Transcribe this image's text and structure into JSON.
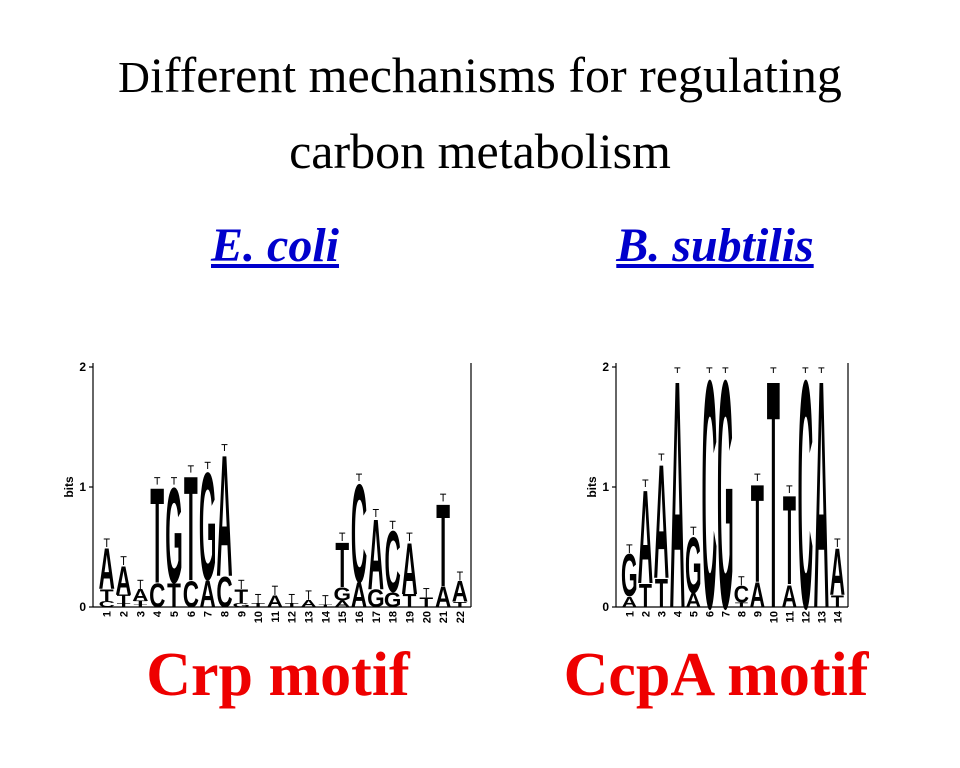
{
  "title": {
    "line1_initial": "D",
    "line1_rest": "ifferent mechanisms for regulating",
    "line2": "carbon metabolism"
  },
  "left": {
    "organism": "E. coli",
    "motif_label": "Crp motif"
  },
  "right": {
    "organism": "B. subtilis",
    "motif_label": "CcpA motif"
  },
  "colors": {
    "title": "#000000",
    "organism_link": "#0000cc",
    "motif_label": "#ee0000",
    "logo_letters": "#000000"
  },
  "chart_data": [
    {
      "type": "sequence-logo",
      "ylabel": "bits",
      "ylim": [
        0,
        2
      ],
      "yticks": [
        "0",
        "1",
        "2"
      ],
      "positions": [
        {
          "label": "1",
          "height": 0.5,
          "letters": [
            "A",
            "T",
            "C"
          ]
        },
        {
          "label": "2",
          "height": 0.35,
          "letters": [
            "A",
            "T",
            "T"
          ]
        },
        {
          "label": "3",
          "height": 0.15,
          "letters": [
            "A",
            "T",
            "T"
          ]
        },
        {
          "label": "4",
          "height": 1.02,
          "letters": [
            "T",
            "C"
          ]
        },
        {
          "label": "5",
          "height": 1.02,
          "letters": [
            "G",
            "T"
          ]
        },
        {
          "label": "6",
          "height": 1.12,
          "letters": [
            "T",
            "C"
          ]
        },
        {
          "label": "7",
          "height": 1.15,
          "letters": [
            "G",
            "A"
          ]
        },
        {
          "label": "8",
          "height": 1.3,
          "letters": [
            "A",
            "C"
          ]
        },
        {
          "label": "9",
          "height": 0.15,
          "letters": [
            "T",
            "G"
          ]
        },
        {
          "label": "10",
          "height": 0.03,
          "letters": [
            "T"
          ]
        },
        {
          "label": "11",
          "height": 0.1,
          "letters": [
            "A"
          ]
        },
        {
          "label": "12",
          "height": 0.03,
          "letters": [
            "T"
          ]
        },
        {
          "label": "13",
          "height": 0.06,
          "letters": [
            "A"
          ]
        },
        {
          "label": "14",
          "height": 0.02,
          "letters": [
            "T"
          ]
        },
        {
          "label": "15",
          "height": 0.55,
          "letters": [
            "T",
            "G",
            "A"
          ]
        },
        {
          "label": "16",
          "height": 1.05,
          "letters": [
            "C",
            "A"
          ]
        },
        {
          "label": "17",
          "height": 0.75,
          "letters": [
            "A",
            "G"
          ]
        },
        {
          "label": "18",
          "height": 0.65,
          "letters": [
            "C",
            "G"
          ]
        },
        {
          "label": "19",
          "height": 0.55,
          "letters": [
            "A",
            "T"
          ]
        },
        {
          "label": "20",
          "height": 0.08,
          "letters": [
            "T"
          ]
        },
        {
          "label": "21",
          "height": 0.88,
          "letters": [
            "T",
            "A"
          ]
        },
        {
          "label": "22",
          "height": 0.22,
          "letters": [
            "A",
            "T"
          ]
        }
      ]
    },
    {
      "type": "sequence-logo",
      "ylabel": "bits",
      "ylim": [
        0,
        2
      ],
      "yticks": [
        "0",
        "1",
        "2"
      ],
      "positions": [
        {
          "label": "1",
          "height": 0.45,
          "letters": [
            "G",
            "A"
          ]
        },
        {
          "label": "2",
          "height": 1.0,
          "letters": [
            "A",
            "T"
          ]
        },
        {
          "label": "3",
          "height": 1.22,
          "letters": [
            "A",
            "T"
          ]
        },
        {
          "label": "4",
          "height": 1.95,
          "letters": [
            "A"
          ]
        },
        {
          "label": "5",
          "height": 0.6,
          "letters": [
            "G",
            "A"
          ]
        },
        {
          "label": "6",
          "height": 1.95,
          "letters": [
            "C"
          ]
        },
        {
          "label": "7",
          "height": 1.95,
          "letters": [
            "G"
          ]
        },
        {
          "label": "8",
          "height": 0.18,
          "letters": [
            "C",
            "T"
          ]
        },
        {
          "label": "9",
          "height": 1.05,
          "letters": [
            "T",
            "A"
          ]
        },
        {
          "label": "10",
          "height": 1.95,
          "letters": [
            "T"
          ]
        },
        {
          "label": "11",
          "height": 0.95,
          "letters": [
            "T",
            "A"
          ]
        },
        {
          "label": "12",
          "height": 1.95,
          "letters": [
            "C"
          ]
        },
        {
          "label": "13",
          "height": 1.95,
          "letters": [
            "A"
          ]
        },
        {
          "label": "14",
          "height": 0.5,
          "letters": [
            "A",
            "T"
          ]
        }
      ]
    }
  ]
}
